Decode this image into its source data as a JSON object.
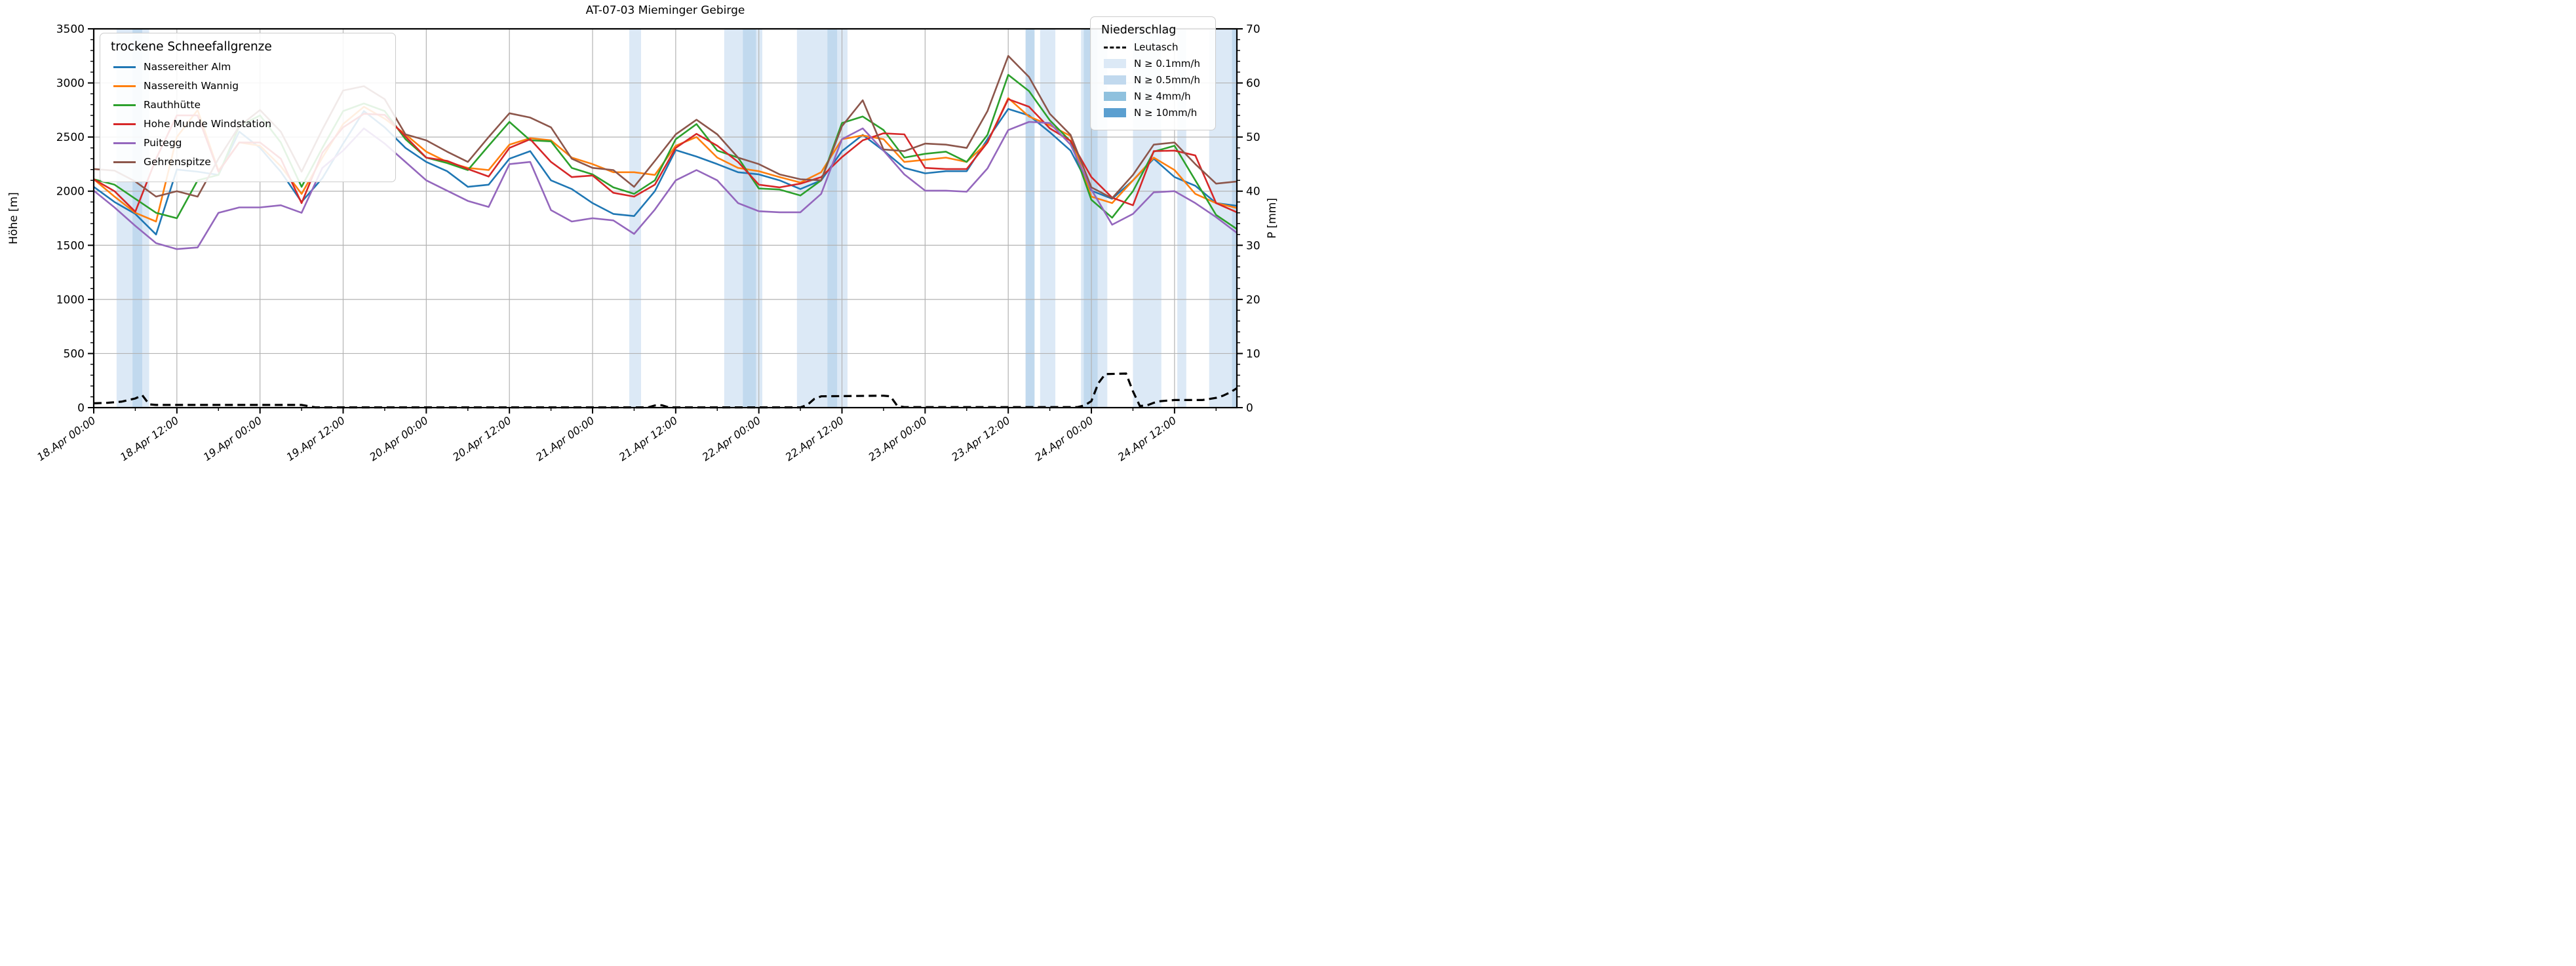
{
  "title": "AT-07-03 Mieminger Gebirge",
  "axes": {
    "y_left": {
      "label": "Höhe [m]",
      "min": 0,
      "max": 3500,
      "major_step": 500,
      "minor_step": 100
    },
    "y_right": {
      "label": "P [mm]",
      "min": 0,
      "max": 70,
      "major_step": 10,
      "minor_step": 2
    },
    "x": {
      "range_hours": [
        0,
        165
      ],
      "minor_step_hours": 6,
      "major_tick_hours": [
        0,
        12,
        24,
        36,
        48,
        60,
        72,
        84,
        96,
        108,
        120,
        132,
        144,
        156
      ],
      "major_tick_labels": [
        "18.Apr 00:00",
        "18.Apr 12:00",
        "19.Apr 00:00",
        "19.Apr 12:00",
        "20.Apr 00:00",
        "20.Apr 12:00",
        "21.Apr 00:00",
        "21.Apr 12:00",
        "22.Apr 00:00",
        "22.Apr 12:00",
        "23.Apr 00:00",
        "23.Apr 12:00",
        "24.Apr 00:00",
        "24.Apr 12:00"
      ]
    }
  },
  "legend_snowline": {
    "title": "trockene Schneefallgrenze",
    "items": [
      {
        "label": "Nassereither Alm",
        "color": "#1f77b4"
      },
      {
        "label": "Nassereith Wannig",
        "color": "#ff7f0e"
      },
      {
        "label": "Rauthhütte",
        "color": "#2ca02c"
      },
      {
        "label": "Hohe Munde Windstation",
        "color": "#d62728"
      },
      {
        "label": "Puitegg",
        "color": "#9467bd"
      },
      {
        "label": "Gehrenspitze",
        "color": "#8c564b"
      }
    ]
  },
  "legend_precip": {
    "title": "Niederschlag",
    "station_label": "Leutasch",
    "bands": [
      {
        "label": "N ≥ 0.1mm/h",
        "threshold": "0.1",
        "color": "#dce9f6"
      },
      {
        "label": "N ≥ 0.5mm/h",
        "threshold": "0.5",
        "color": "#c1d9ee"
      },
      {
        "label": "N ≥ 4mm/h",
        "threshold": "4",
        "color": "#8fc1de"
      },
      {
        "label": "N ≥ 10mm/h",
        "threshold": "10",
        "color": "#5b9fd0"
      }
    ]
  },
  "chart_data": {
    "type": "line",
    "title": "AT-07-03 Mieminger Gebirge",
    "xlabel": "",
    "ylabel_left": "Höhe [m]",
    "ylabel_right": "P [mm]",
    "x_unit": "hours since 18.Apr 00:00",
    "x_start_label": "18.Apr 00:00",
    "sample_step_hours": 3,
    "ylim_left": [
      0,
      3500
    ],
    "ylim_right": [
      0,
      70
    ],
    "grid": true,
    "series": [
      {
        "name": "Nassereither Alm",
        "color": "#1f77b4",
        "values": [
          2040,
          1900,
          1790,
          1600,
          2200,
          2180,
          2150,
          2550,
          2400,
          2180,
          1900,
          2120,
          2440,
          2740,
          2590,
          2400,
          2270,
          2185,
          2040,
          2060,
          2300,
          2370,
          2100,
          2020,
          1890,
          1790,
          1770,
          2000,
          2380,
          2320,
          2250,
          2175,
          2155,
          2100,
          2020,
          2100,
          2370,
          2520,
          2375,
          2215,
          2165,
          2185,
          2185,
          2480,
          2760,
          2700,
          2545,
          2375,
          2005,
          1930,
          2100,
          2300,
          2130,
          2050,
          1890,
          1865
        ]
      },
      {
        "name": "Nassereith Wannig",
        "color": "#ff7f0e",
        "values": [
          2110,
          1950,
          1800,
          1720,
          2500,
          2750,
          2190,
          2450,
          2420,
          2230,
          1975,
          2310,
          2620,
          2780,
          2670,
          2525,
          2365,
          2270,
          2215,
          2195,
          2430,
          2490,
          2470,
          2310,
          2250,
          2175,
          2175,
          2150,
          2420,
          2500,
          2310,
          2215,
          2185,
          2130,
          2080,
          2175,
          2480,
          2515,
          2480,
          2270,
          2290,
          2310,
          2270,
          2450,
          2860,
          2690,
          2610,
          2510,
          1950,
          1890,
          2100,
          2310,
          2195,
          1975,
          1890,
          1845
        ]
      },
      {
        "name": "Rauthhütte",
        "color": "#2ca02c",
        "values": [
          2110,
          2060,
          1930,
          1800,
          1750,
          2100,
          2150,
          2600,
          2700,
          2450,
          2040,
          2400,
          2740,
          2810,
          2740,
          2480,
          2310,
          2260,
          2195,
          2420,
          2640,
          2470,
          2460,
          2215,
          2155,
          2035,
          1975,
          2100,
          2480,
          2620,
          2375,
          2310,
          2025,
          2015,
          1960,
          2100,
          2630,
          2690,
          2565,
          2310,
          2345,
          2365,
          2270,
          2520,
          3075,
          2925,
          2655,
          2460,
          1920,
          1755,
          2000,
          2365,
          2420,
          2100,
          1780,
          1650
        ]
      },
      {
        "name": "Hohe Munde Windstation",
        "color": "#d62728",
        "values": [
          2110,
          2000,
          1810,
          2300,
          2700,
          2700,
          2180,
          2450,
          2450,
          2300,
          1890,
          2355,
          2590,
          2715,
          2705,
          2505,
          2310,
          2280,
          2205,
          2135,
          2400,
          2480,
          2270,
          2130,
          2145,
          1985,
          1950,
          2060,
          2400,
          2530,
          2420,
          2270,
          2060,
          2035,
          2070,
          2130,
          2315,
          2470,
          2535,
          2525,
          2215,
          2205,
          2205,
          2450,
          2850,
          2780,
          2580,
          2465,
          2130,
          1940,
          1870,
          2370,
          2375,
          2330,
          1890,
          1805
        ]
      },
      {
        "name": "Puitegg",
        "color": "#9467bd",
        "values": [
          2005,
          1850,
          1680,
          1520,
          1465,
          1480,
          1800,
          1850,
          1850,
          1870,
          1800,
          2215,
          2375,
          2580,
          2440,
          2270,
          2100,
          2005,
          1910,
          1855,
          2250,
          2270,
          1825,
          1720,
          1750,
          1730,
          1605,
          1830,
          2100,
          2195,
          2100,
          1890,
          1815,
          1805,
          1805,
          1975,
          2480,
          2580,
          2375,
          2155,
          2005,
          2005,
          1995,
          2210,
          2565,
          2640,
          2630,
          2430,
          2015,
          1690,
          1790,
          1990,
          2000,
          1890,
          1760,
          1615
        ]
      },
      {
        "name": "Gehrenspitze",
        "color": "#8c564b",
        "values": [
          2205,
          2190,
          2090,
          1950,
          2000,
          1950,
          2300,
          2600,
          2750,
          2550,
          2180,
          2570,
          2930,
          2970,
          2850,
          2525,
          2470,
          2365,
          2270,
          2500,
          2720,
          2680,
          2590,
          2300,
          2215,
          2195,
          2040,
          2280,
          2525,
          2660,
          2525,
          2310,
          2250,
          2155,
          2110,
          2100,
          2600,
          2840,
          2385,
          2370,
          2440,
          2430,
          2400,
          2740,
          3250,
          3055,
          2715,
          2520,
          2035,
          1935,
          2150,
          2430,
          2450,
          2250,
          2070,
          2090
        ]
      }
    ],
    "precip_line": {
      "name": "Leutasch",
      "color": "#000000",
      "dashed": true,
      "unit": "mm",
      "points": [
        [
          0,
          0.8
        ],
        [
          2,
          0.9
        ],
        [
          4,
          1.1
        ],
        [
          6,
          1.7
        ],
        [
          7,
          2.3
        ],
        [
          8,
          0.6
        ],
        [
          9,
          0.5
        ],
        [
          30,
          0.5
        ],
        [
          32,
          0.05
        ],
        [
          80,
          0.05
        ],
        [
          81,
          0.4
        ],
        [
          82,
          0.45
        ],
        [
          83,
          0.05
        ],
        [
          102,
          0.05
        ],
        [
          103,
          0.5
        ],
        [
          104,
          1.6
        ],
        [
          105,
          2.1
        ],
        [
          114,
          2.2
        ],
        [
          115,
          2.1
        ],
        [
          116,
          0.3
        ],
        [
          117,
          0.1
        ],
        [
          142,
          0.1
        ],
        [
          143,
          0.4
        ],
        [
          144,
          1.2
        ],
        [
          145,
          4.5
        ],
        [
          146,
          6.2
        ],
        [
          149,
          6.3
        ],
        [
          150,
          3.0
        ],
        [
          151,
          0.3
        ],
        [
          152,
          0.4
        ],
        [
          153,
          0.9
        ],
        [
          154,
          1.2
        ],
        [
          156,
          1.4
        ],
        [
          160,
          1.4
        ],
        [
          161,
          1.6
        ],
        [
          162,
          1.8
        ],
        [
          163,
          2.2
        ],
        [
          164,
          2.8
        ],
        [
          165,
          3.6
        ]
      ]
    },
    "precip_bands": [
      {
        "start_h": 3.3,
        "end_h": 8.0,
        "threshold": "0.1"
      },
      {
        "start_h": 5.6,
        "end_h": 7.0,
        "threshold": "0.5"
      },
      {
        "start_h": 77.3,
        "end_h": 79.0,
        "threshold": "0.1"
      },
      {
        "start_h": 91.0,
        "end_h": 96.5,
        "threshold": "0.1"
      },
      {
        "start_h": 93.7,
        "end_h": 95.6,
        "threshold": "0.5"
      },
      {
        "start_h": 101.5,
        "end_h": 108.8,
        "threshold": "0.1"
      },
      {
        "start_h": 105.9,
        "end_h": 107.3,
        "threshold": "0.5"
      },
      {
        "start_h": 134.5,
        "end_h": 135.8,
        "threshold": "0.5"
      },
      {
        "start_h": 136.6,
        "end_h": 138.8,
        "threshold": "0.1"
      },
      {
        "start_h": 142.5,
        "end_h": 146.3,
        "threshold": "0.1"
      },
      {
        "start_h": 142.9,
        "end_h": 144.9,
        "threshold": "0.5"
      },
      {
        "start_h": 150.0,
        "end_h": 154.1,
        "threshold": "0.1"
      },
      {
        "start_h": 156.4,
        "end_h": 157.7,
        "threshold": "0.1"
      },
      {
        "start_h": 161.0,
        "end_h": 165.0,
        "threshold": "0.1"
      },
      {
        "start_h": 164.3,
        "end_h": 165.0,
        "threshold": "0.5"
      }
    ]
  }
}
